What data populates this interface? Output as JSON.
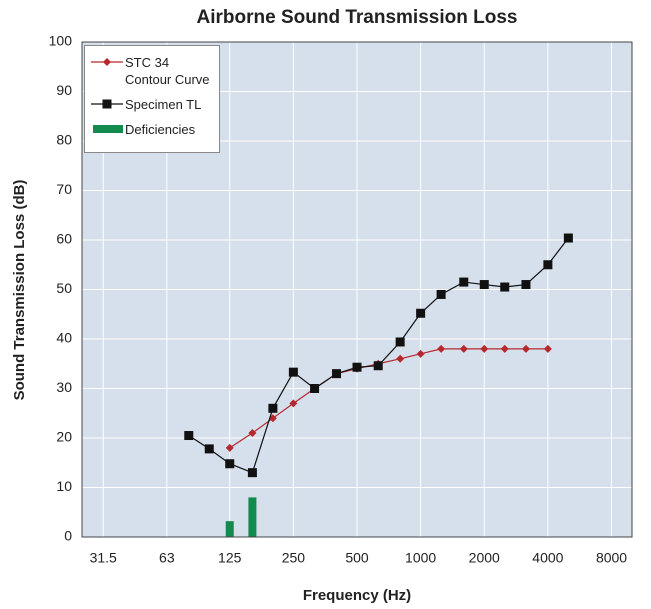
{
  "chart_data": {
    "type": "line",
    "title": "Airborne Sound Transmission Loss",
    "xlabel": "Frequency (Hz)",
    "ylabel": "Sound Transmission Loss (dB)",
    "xscale": "log",
    "x": [
      80,
      100,
      125,
      160,
      200,
      250,
      315,
      400,
      500,
      630,
      800,
      1000,
      1250,
      1600,
      2000,
      2500,
      3150,
      4000,
      5000
    ],
    "series": [
      {
        "name": "STC 34 Contour Curve",
        "type": "line",
        "marker": "diamond",
        "color": "#b5282e",
        "values": [
          null,
          null,
          18,
          21,
          24,
          27,
          30,
          33,
          34,
          35,
          36,
          37,
          38,
          38,
          38,
          38,
          38,
          38,
          null
        ]
      },
      {
        "name": "Specimen TL",
        "type": "line",
        "marker": "square",
        "color": "#111111",
        "values": [
          20.5,
          17.8,
          14.8,
          13,
          26,
          33.3,
          30,
          33,
          34.3,
          34.6,
          39.4,
          45.2,
          49,
          51.5,
          51,
          50.5,
          51,
          55,
          60.4
        ]
      },
      {
        "name": "Deficiencies",
        "type": "bar",
        "color": "#138a4e",
        "values": [
          null,
          null,
          3.2,
          8,
          null,
          null,
          null,
          null,
          null,
          null,
          null,
          null,
          null,
          null,
          null,
          null,
          null,
          null,
          null
        ]
      }
    ],
    "xlim": [
      25,
      10000
    ],
    "xticks": [
      31.5,
      63,
      125,
      250,
      500,
      1000,
      2000,
      4000,
      8000
    ],
    "ylim": [
      0,
      100
    ],
    "yticks": [
      0,
      10,
      20,
      30,
      40,
      50,
      60,
      70,
      80,
      90,
      100
    ],
    "grid": true,
    "legend": "upper-left"
  }
}
